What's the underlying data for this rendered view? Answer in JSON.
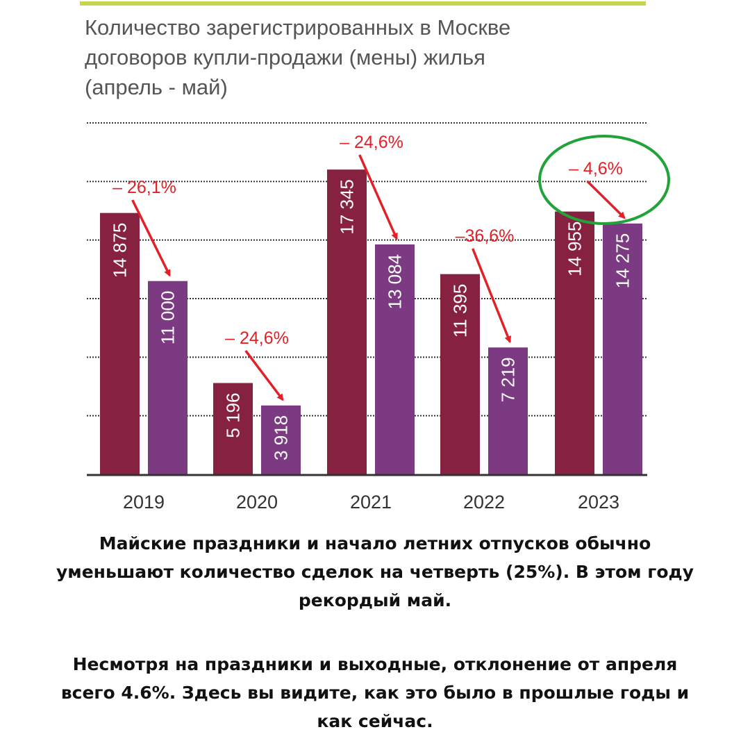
{
  "chart_data": {
    "type": "bar",
    "title_lines": [
      "Количество зарегистрированных в Москве",
      "договоров купли-продажи (мены) жилья",
      "(апрель - май)"
    ],
    "categories": [
      "2019",
      "2020",
      "2021",
      "2022",
      "2023"
    ],
    "series": [
      {
        "values": [
          14875,
          5196,
          17345,
          11395,
          14955
        ],
        "color": "#86213f"
      },
      {
        "values": [
          11000,
          3918,
          13084,
          7219,
          14275
        ],
        "color": "#7b3a82"
      }
    ],
    "value_labels": {
      "april": [
        "14 875",
        "5 196",
        "17 345",
        "11 395",
        "14 955"
      ],
      "may": [
        "11 000",
        "3 918",
        "13 084",
        "7 219",
        "14 275"
      ]
    },
    "change_labels": [
      "– 26,1%",
      "– 24,6%",
      "– 24,6%",
      "–36,6%",
      "– 4,6%"
    ],
    "ylim": [
      0,
      20000
    ],
    "grid": true,
    "gridlines": [
      3333,
      6667,
      10000,
      13333,
      16667,
      20000
    ],
    "highlight_category": "2023",
    "colors": {
      "arrow": "#e32027",
      "highlight": "#22a33a",
      "gridline": "#333333",
      "axis": "#333333",
      "tick_text": "#333333"
    }
  },
  "captions": {
    "paragraph1": [
      "Майские праздники и начало летних отпусков обычно",
      "уменьшают количество сделок на четверть (25%). В этом году",
      "рекордый май."
    ],
    "paragraph2": [
      "Несмотря на праздники и выходные, отклонение от апреля",
      "всего 4.6%. Здесь вы видите, как это было в прошлые годы и",
      "как сейчас."
    ]
  }
}
